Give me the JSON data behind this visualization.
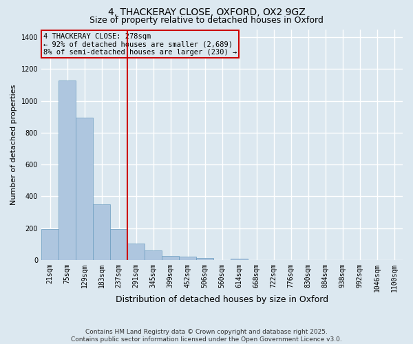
{
  "title_line1": "4, THACKERAY CLOSE, OXFORD, OX2 9GZ",
  "title_line2": "Size of property relative to detached houses in Oxford",
  "xlabel": "Distribution of detached houses by size in Oxford",
  "ylabel": "Number of detached properties",
  "categories": [
    "21sqm",
    "75sqm",
    "129sqm",
    "183sqm",
    "237sqm",
    "291sqm",
    "345sqm",
    "399sqm",
    "452sqm",
    "506sqm",
    "560sqm",
    "614sqm",
    "668sqm",
    "722sqm",
    "776sqm",
    "830sqm",
    "884sqm",
    "938sqm",
    "992sqm",
    "1046sqm",
    "1100sqm"
  ],
  "values": [
    193,
    1130,
    893,
    350,
    195,
    103,
    62,
    25,
    20,
    13,
    0,
    10,
    0,
    0,
    0,
    0,
    0,
    0,
    0,
    0,
    0
  ],
  "bar_color": "#aec6df",
  "bar_edge_color": "#6a9cbf",
  "background_color": "#dce8f0",
  "grid_color": "#ffffff",
  "vline_color": "#cc0000",
  "vline_pos": 4.5,
  "annotation_text": "4 THACKERAY CLOSE: 278sqm\n← 92% of detached houses are smaller (2,689)\n8% of semi-detached houses are larger (230) →",
  "annotation_box_color": "#cc0000",
  "footer_line1": "Contains HM Land Registry data © Crown copyright and database right 2025.",
  "footer_line2": "Contains public sector information licensed under the Open Government Licence v3.0.",
  "ylim": [
    0,
    1450
  ],
  "yticks": [
    0,
    200,
    400,
    600,
    800,
    1000,
    1200,
    1400
  ],
  "title1_fontsize": 10,
  "title2_fontsize": 9,
  "xlabel_fontsize": 9,
  "ylabel_fontsize": 8,
  "tick_fontsize": 7,
  "footer_fontsize": 6.5,
  "ann_fontsize": 7.5
}
